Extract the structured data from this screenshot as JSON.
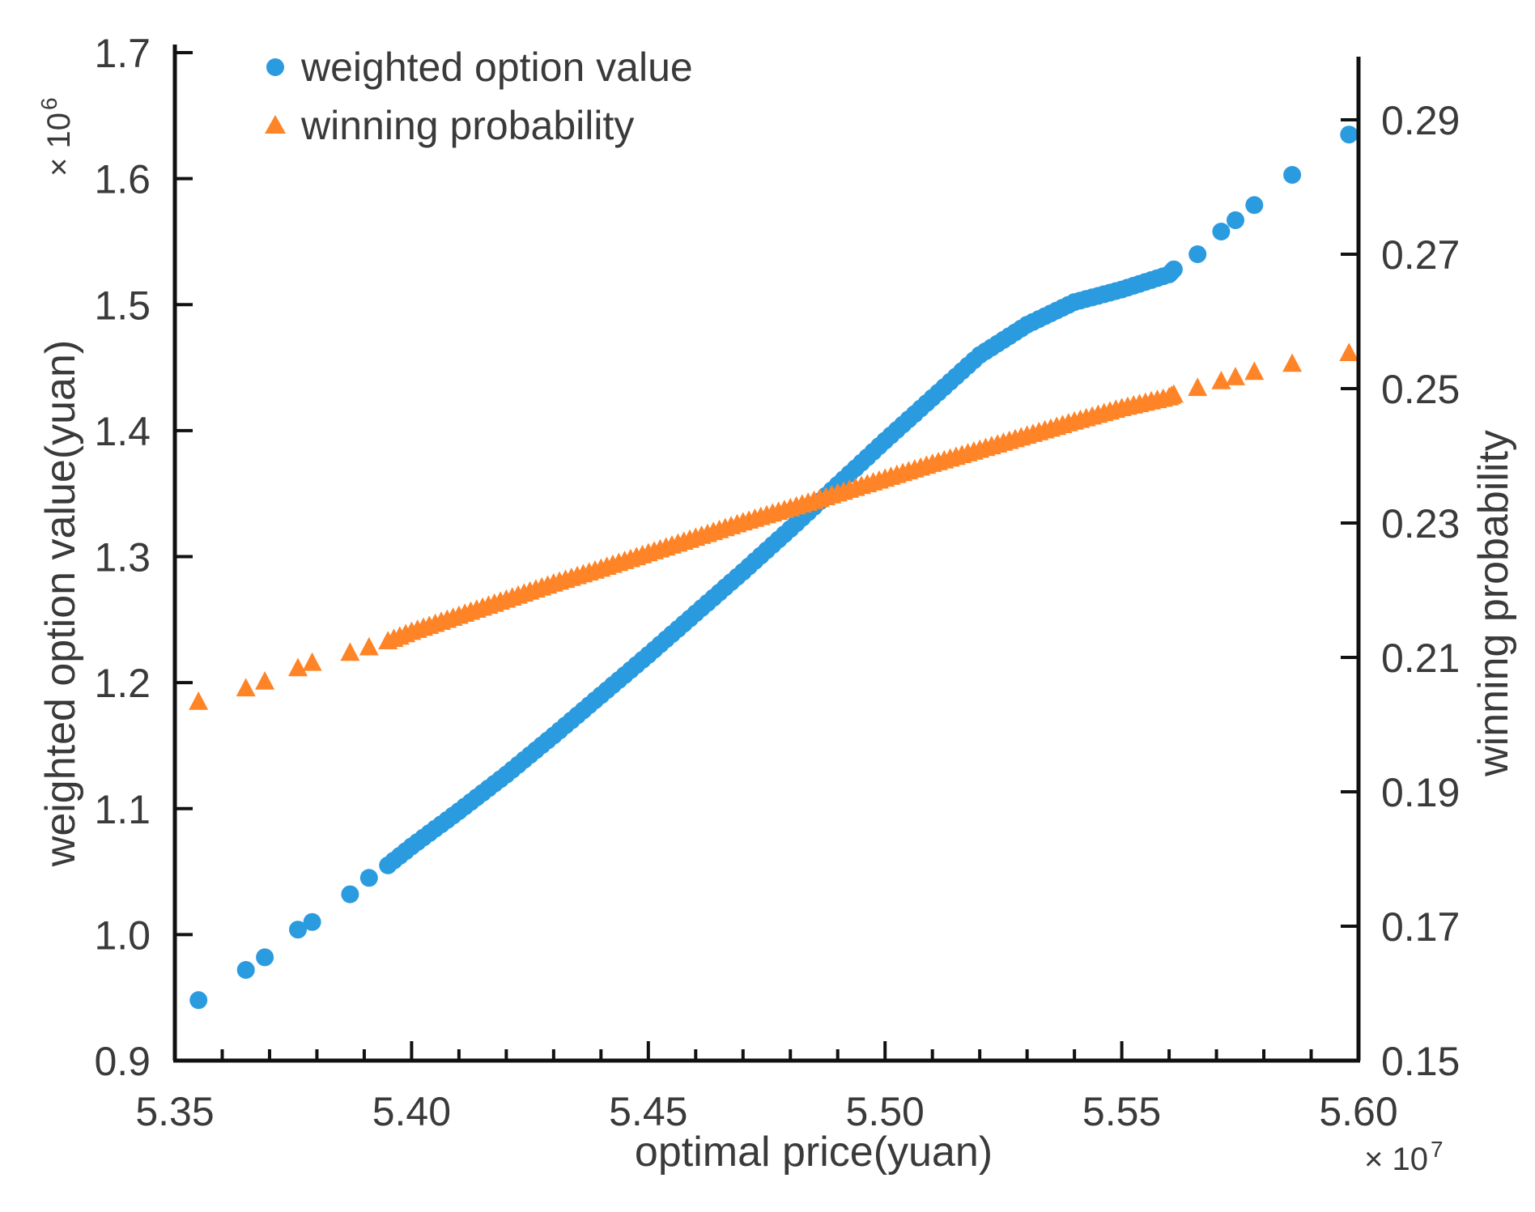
{
  "chart_data": {
    "type": "scatter",
    "x_axis": {
      "label": "optimal price(yuan)",
      "multiplier": "× 10",
      "multiplier_exp": "7",
      "range": [
        5.35,
        5.6
      ],
      "ticks": [
        "5.35",
        "5.40",
        "5.45",
        "5.50",
        "5.55",
        "5.60"
      ],
      "tick_values": [
        5.35,
        5.4,
        5.45,
        5.5,
        5.55,
        5.6
      ]
    },
    "y_left": {
      "label": "weighted option value(yuan)",
      "multiplier": "× 10",
      "multiplier_exp": "6",
      "range": [
        0.9,
        1.7
      ],
      "ticks": [
        "0.9",
        "1.0",
        "1.1",
        "1.2",
        "1.3",
        "1.4",
        "1.5",
        "1.6",
        "1.7"
      ],
      "tick_values": [
        0.9,
        1.0,
        1.1,
        1.2,
        1.3,
        1.4,
        1.5,
        1.6,
        1.7
      ]
    },
    "y_right": {
      "label": "winning probability",
      "range": [
        0.15,
        0.3
      ],
      "ticks": [
        "0.15",
        "0.17",
        "0.19",
        "0.21",
        "0.23",
        "0.25",
        "0.27",
        "0.29"
      ],
      "tick_values": [
        0.15,
        0.17,
        0.19,
        0.21,
        0.23,
        0.25,
        0.27,
        0.29
      ]
    },
    "legend_position": "top-left",
    "series": [
      {
        "name": "weighted option value",
        "marker": "circle",
        "color": "#2b9be0",
        "axis": "left",
        "x": [
          5.355,
          5.365,
          5.369,
          5.376,
          5.379,
          5.387,
          5.391,
          5.395,
          5.4,
          5.41,
          5.42,
          5.43,
          5.44,
          5.45,
          5.46,
          5.47,
          5.48,
          5.49,
          5.5,
          5.51,
          5.52,
          5.53,
          5.54,
          5.55,
          5.56,
          5.561,
          5.566,
          5.571,
          5.574,
          5.578,
          5.586,
          5.598
        ],
        "y": [
          0.948,
          0.972,
          0.982,
          1.004,
          1.01,
          1.032,
          1.045,
          1.055,
          1.07,
          1.098,
          1.127,
          1.158,
          1.19,
          1.222,
          1.255,
          1.288,
          1.322,
          1.357,
          1.392,
          1.426,
          1.46,
          1.484,
          1.502,
          1.512,
          1.524,
          1.528,
          1.54,
          1.558,
          1.567,
          1.579,
          1.603,
          1.635
        ]
      },
      {
        "name": "winning probability",
        "marker": "triangle",
        "color": "#ff8427",
        "axis": "right",
        "x": [
          5.355,
          5.365,
          5.369,
          5.376,
          5.379,
          5.387,
          5.391,
          5.395,
          5.4,
          5.41,
          5.42,
          5.43,
          5.44,
          5.45,
          5.46,
          5.47,
          5.48,
          5.49,
          5.5,
          5.51,
          5.52,
          5.53,
          5.54,
          5.55,
          5.56,
          5.561,
          5.566,
          5.571,
          5.574,
          5.578,
          5.586,
          5.598
        ],
        "y": [
          0.2035,
          0.2055,
          0.2065,
          0.2085,
          0.2093,
          0.2108,
          0.2116,
          0.2125,
          0.2139,
          0.2163,
          0.2187,
          0.2211,
          0.2233,
          0.2256,
          0.2279,
          0.2302,
          0.2323,
          0.2345,
          0.2367,
          0.2389,
          0.241,
          0.2431,
          0.2452,
          0.2472,
          0.2488,
          0.2492,
          0.2502,
          0.2512,
          0.2518,
          0.2526,
          0.2538,
          0.2554
        ]
      }
    ]
  }
}
